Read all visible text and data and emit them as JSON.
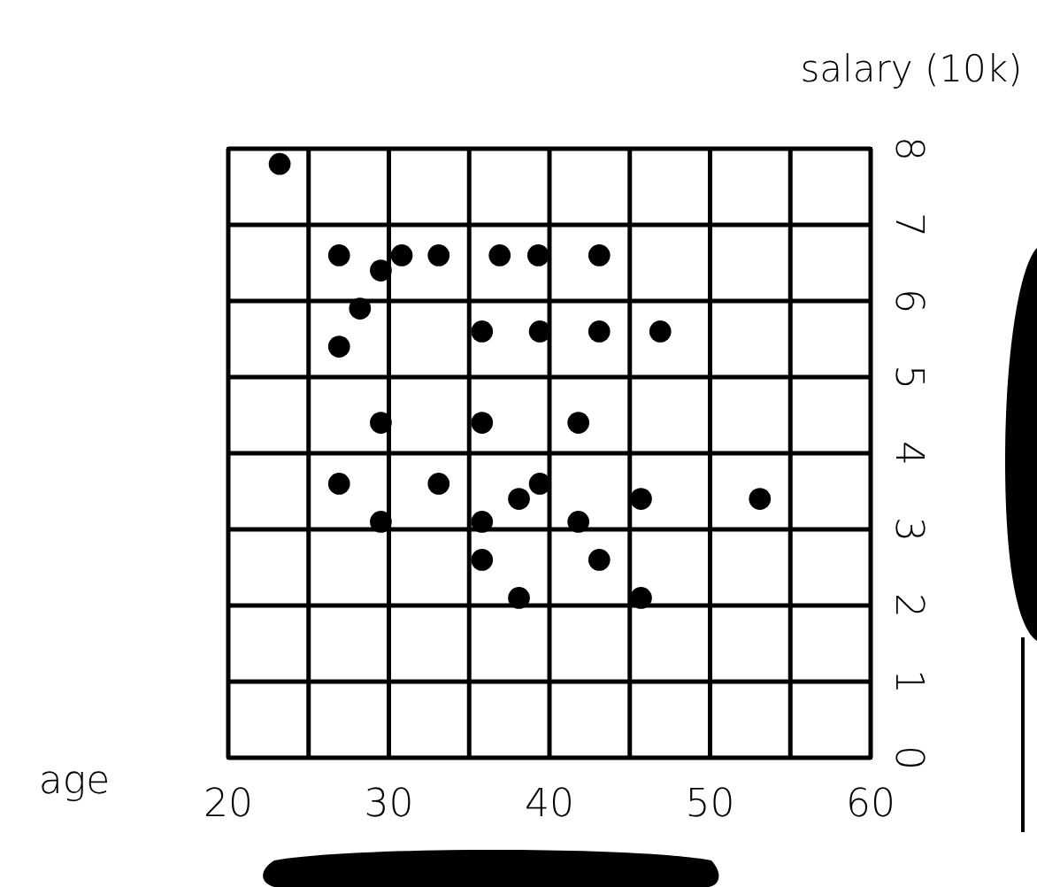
{
  "chart_data": {
    "type": "scatter",
    "xlabel": "age",
    "ylabel": "salary (10k)",
    "x": [
      23.2,
      26.9,
      29.5,
      30.8,
      33.1,
      36.9,
      39.3,
      43.1,
      28.2,
      26.9,
      35.8,
      39.4,
      43.1,
      46.9,
      29.5,
      35.8,
      41.8,
      26.9,
      33.1,
      39.4,
      38.1,
      29.5,
      35.8,
      41.8,
      45.7,
      53.1,
      35.8,
      43.1,
      38.1,
      45.7
    ],
    "values": [
      7.8,
      6.6,
      6.4,
      6.6,
      6.6,
      6.6,
      6.6,
      6.6,
      5.9,
      5.4,
      5.6,
      5.6,
      5.6,
      5.6,
      4.4,
      4.4,
      4.4,
      3.6,
      3.6,
      3.6,
      3.4,
      3.1,
      3.1,
      3.1,
      3.4,
      3.4,
      2.6,
      2.6,
      2.1,
      2.1
    ],
    "color": "#000000",
    "marker": "circle",
    "xlim": [
      20,
      60
    ],
    "xticks": [
      20,
      {
        "value": 25,
        "label": null
      },
      30,
      {
        "value": 35,
        "label": null
      },
      40,
      {
        "value": 45,
        "label": null
      },
      50,
      {
        "value": 55,
        "label": null
      },
      60
    ],
    "ylim": [
      0,
      8
    ],
    "yticks": [
      0,
      1,
      2,
      3,
      4,
      5,
      6,
      7,
      8
    ],
    "grid": true
  }
}
